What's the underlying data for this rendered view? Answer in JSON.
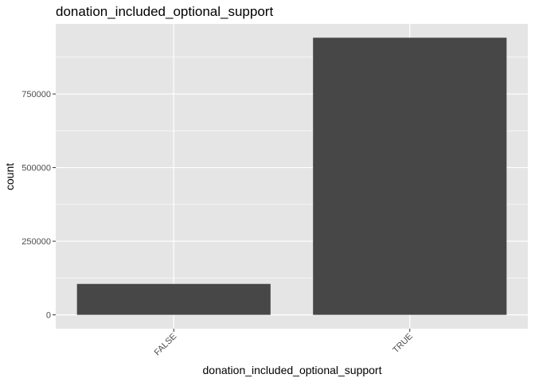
{
  "chart_data": {
    "type": "bar",
    "title": "donation_included_optional_support",
    "xlabel": "donation_included_optional_support",
    "ylabel": "count",
    "categories": [
      "FALSE",
      "TRUE"
    ],
    "values": [
      105000,
      941000
    ],
    "ylim": [
      -47000,
      988000
    ],
    "yticks": [
      0,
      250000,
      500000,
      750000
    ],
    "ytick_labels": [
      "0",
      "250000",
      "500000",
      "750000"
    ],
    "grid": true,
    "legend": "none",
    "colors": {
      "panel": "#e5e5e5",
      "grid": "#ffffff",
      "bar": "#474747",
      "tick": "#333333",
      "tick_label": "#4d4d4d"
    }
  }
}
